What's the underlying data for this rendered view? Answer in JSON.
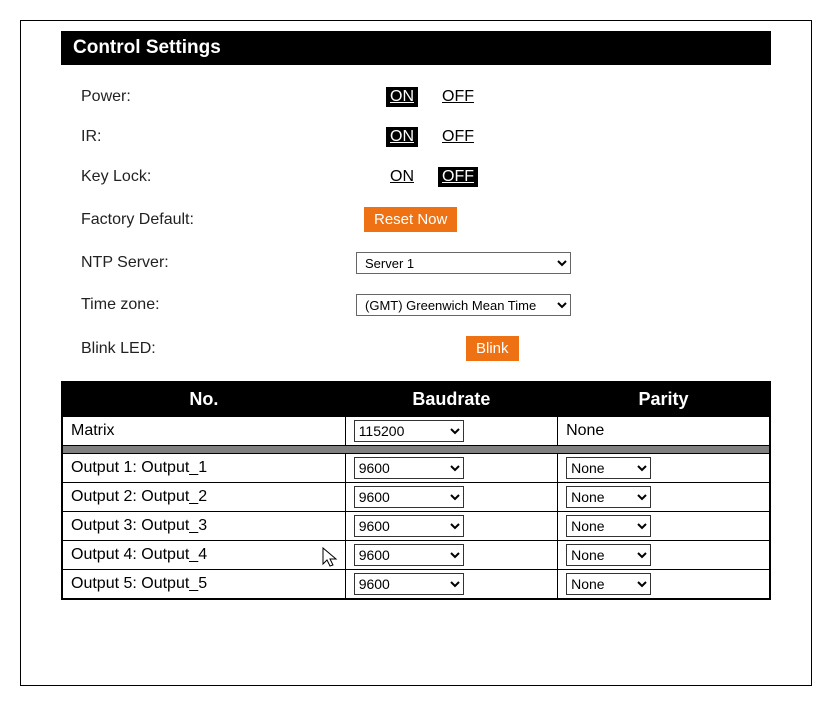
{
  "header": {
    "title": "Control Settings"
  },
  "settings": {
    "power": {
      "label": "Power:",
      "on": "ON",
      "off": "OFF",
      "active": "on"
    },
    "ir": {
      "label": "IR:",
      "on": "ON",
      "off": "OFF",
      "active": "on"
    },
    "keylock": {
      "label": "Key Lock:",
      "on": "ON",
      "off": "OFF",
      "active": "off"
    },
    "factory": {
      "label": "Factory Default:",
      "button": "Reset Now"
    },
    "ntp": {
      "label": "NTP Server:",
      "value": "Server 1"
    },
    "tz": {
      "label": "Time zone:",
      "value": "(GMT) Greenwich Mean Time"
    },
    "blink": {
      "label": "Blink LED:",
      "button": "Blink"
    }
  },
  "table": {
    "headers": {
      "no": "No.",
      "baud": "Baudrate",
      "parity": "Parity"
    },
    "matrix": {
      "name": "Matrix",
      "baud": "115200",
      "parity": "None"
    },
    "rows": [
      {
        "name": "Output 1: Output_1",
        "baud": "9600",
        "parity": "None"
      },
      {
        "name": "Output 2: Output_2",
        "baud": "9600",
        "parity": "None"
      },
      {
        "name": "Output 3: Output_3",
        "baud": "9600",
        "parity": "None"
      },
      {
        "name": "Output 4: Output_4",
        "baud": "9600",
        "parity": "None"
      },
      {
        "name": "Output 5: Output_5",
        "baud": "9600",
        "parity": "None"
      }
    ]
  },
  "colors": {
    "header_bg": "#000000",
    "header_fg": "#ffffff",
    "accent": "#ee7213",
    "border": "#000000",
    "sep": "#808080"
  }
}
